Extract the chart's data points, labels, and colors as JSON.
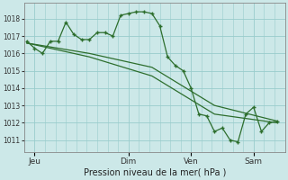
{
  "bg_color": "#cce8e8",
  "grid_color": "#99cccc",
  "line_color": "#2d6e2d",
  "marker_color": "#2d6e2d",
  "xlabel": "Pression niveau de la mer( hPa )",
  "ylabel_ticks": [
    1011,
    1012,
    1013,
    1014,
    1015,
    1016,
    1017,
    1018
  ],
  "ylim": [
    1010.3,
    1018.9
  ],
  "xtick_labels": [
    "Jeu",
    "Dim",
    "Ven",
    "Sam"
  ],
  "xtick_positions": [
    4,
    40,
    64,
    88
  ],
  "xlim": [
    0,
    100
  ],
  "series1_x": [
    1,
    4,
    7,
    10,
    13,
    16,
    19,
    22,
    25,
    28,
    31,
    34,
    37,
    40,
    43,
    46,
    49,
    52,
    55,
    58,
    61,
    64,
    67,
    70,
    73,
    76,
    79,
    82,
    85,
    88,
    91,
    94,
    97
  ],
  "series1_y": [
    1016.7,
    1016.3,
    1016.0,
    1016.7,
    1016.7,
    1017.8,
    1017.1,
    1016.8,
    1016.8,
    1017.2,
    1017.2,
    1017.0,
    1018.2,
    1018.3,
    1018.4,
    1018.4,
    1018.3,
    1017.6,
    1015.8,
    1015.3,
    1015.0,
    1014.0,
    1012.5,
    1012.4,
    1011.5,
    1011.7,
    1011.0,
    1010.9,
    1012.5,
    1012.9,
    1011.5,
    1012.0,
    1012.1
  ],
  "series2_x": [
    1,
    25,
    49,
    73,
    97
  ],
  "series2_y": [
    1016.6,
    1016.0,
    1015.2,
    1013.0,
    1012.1
  ],
  "series3_x": [
    1,
    25,
    49,
    73,
    97
  ],
  "series3_y": [
    1016.6,
    1015.8,
    1014.7,
    1012.5,
    1012.0
  ]
}
